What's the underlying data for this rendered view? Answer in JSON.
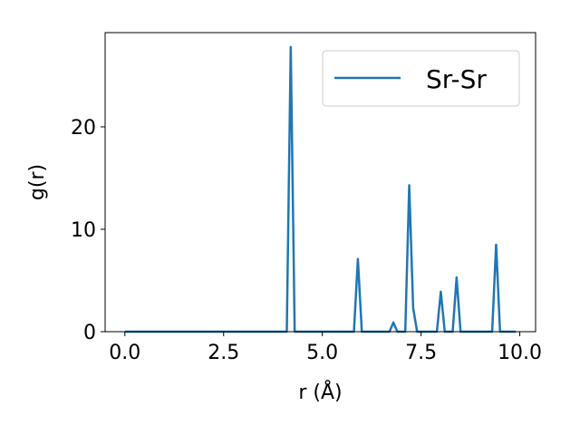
{
  "chart_data": {
    "type": "line",
    "title": "",
    "xlabel": "r (Å)",
    "ylabel": "g(r)",
    "xlim": [
      -0.5,
      10.4
    ],
    "ylim": [
      0,
      29.2
    ],
    "xticks": [
      0.0,
      2.5,
      5.0,
      7.5,
      10.0
    ],
    "xtick_labels": [
      "0.0",
      "2.5",
      "5.0",
      "7.5",
      "10.0"
    ],
    "yticks": [
      0,
      10,
      20
    ],
    "ytick_labels": [
      "0",
      "10",
      "20"
    ],
    "grid": false,
    "legend_position": "top-right",
    "series": [
      {
        "name": "Sr-Sr",
        "color": "#1f77b4",
        "x": [
          0.0,
          4.1,
          4.2,
          4.3,
          5.8,
          5.9,
          6.0,
          6.7,
          6.8,
          6.9,
          7.1,
          7.2,
          7.3,
          7.4,
          7.9,
          8.0,
          8.1,
          8.3,
          8.4,
          8.5,
          9.3,
          9.4,
          9.5,
          9.9
        ],
        "y": [
          0,
          0,
          27.8,
          0,
          0,
          7.1,
          0,
          0,
          0.9,
          0,
          0,
          14.3,
          2.3,
          0,
          0,
          3.9,
          0,
          0,
          5.3,
          0,
          0,
          8.5,
          0,
          0
        ]
      }
    ]
  }
}
